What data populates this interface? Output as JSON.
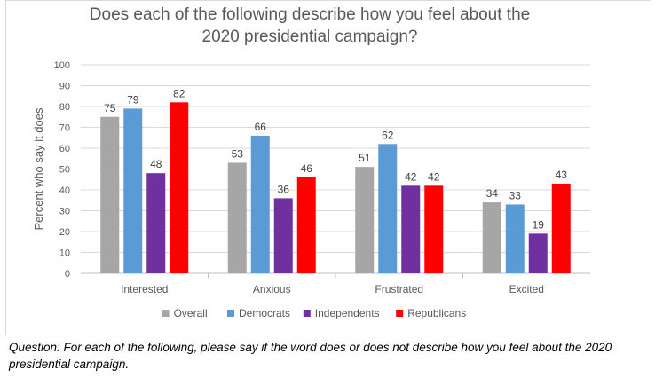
{
  "chart_data": {
    "type": "bar",
    "title": "Does each of the following describe how you feel about the 2020 presidential campaign?",
    "title_lines": [
      "Does each of the following describe how you feel about the",
      "2020 presidential campaign?"
    ],
    "ylabel": "Percent who say it does",
    "xlabel": "",
    "ylim": [
      0,
      100
    ],
    "yticks": [
      0,
      10,
      20,
      30,
      40,
      50,
      60,
      70,
      80,
      90,
      100
    ],
    "grid": true,
    "legend_position": "bottom",
    "categories": [
      "Interested",
      "Anxious",
      "Frustrated",
      "Excited"
    ],
    "series": [
      {
        "name": "Overall",
        "color": "#a6a6a6",
        "values": [
          75,
          53,
          51,
          34
        ]
      },
      {
        "name": "Democrats",
        "color": "#5b9bd5",
        "values": [
          79,
          66,
          62,
          33
        ]
      },
      {
        "name": "Independents",
        "color": "#7030a0",
        "values": [
          48,
          36,
          42,
          19
        ]
      },
      {
        "name": "Republicans",
        "color": "#ff0000",
        "values": [
          82,
          46,
          42,
          43
        ]
      }
    ]
  },
  "note": "Question:  For each of the following, please say if the word does or does not describe how you feel about the 2020 presidential campaign."
}
